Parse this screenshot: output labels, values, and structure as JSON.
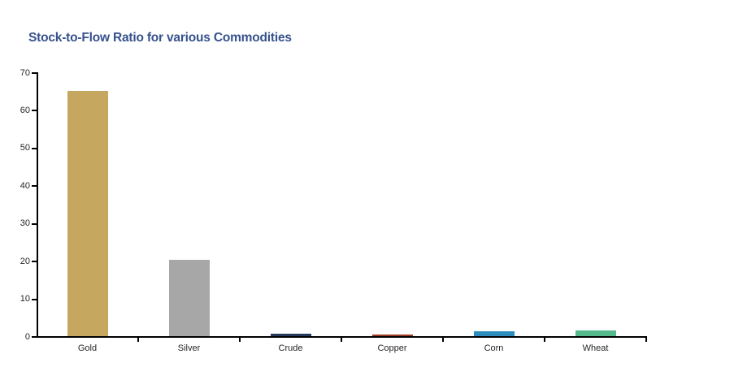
{
  "chart_data": {
    "type": "bar",
    "title": "Stock-to-Flow Ratio for various Commodities",
    "categories": [
      "Gold",
      "Silver",
      "Crude",
      "Copper",
      "Corn",
      "Wheat"
    ],
    "values": [
      65,
      20.3,
      0.6,
      0.4,
      1.3,
      1.6
    ],
    "bar_colors": [
      "#C5A75F",
      "#A7A7A7",
      "#24395B",
      "#9E3A23",
      "#2D8CBD",
      "#54B98C"
    ],
    "ylim": [
      0,
      70
    ],
    "ytick_interval": 10,
    "ytick_labels": [
      "0",
      "10",
      "20",
      "30",
      "40",
      "50",
      "60",
      "70"
    ],
    "xlabel": "",
    "ylabel": "",
    "grid": false,
    "legend": "none",
    "title_color": "#36518C",
    "axis_color": "#000000",
    "tick_label_color": "#262626",
    "background_color": "#FFFFFF"
  }
}
